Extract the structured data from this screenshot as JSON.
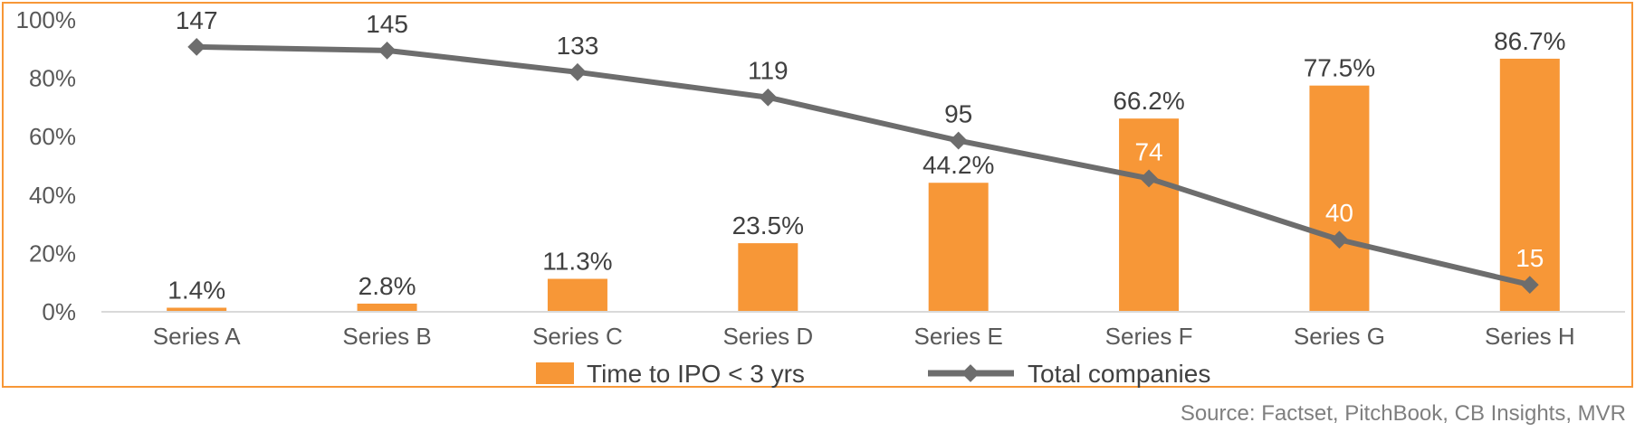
{
  "chart_data": {
    "type": "bar",
    "categories": [
      "Series A",
      "Series B",
      "Series C",
      "Series D",
      "Series E",
      "Series F",
      "Series G",
      "Series H"
    ],
    "series": [
      {
        "name": "Time to IPO < 3 yrs",
        "type": "bar",
        "axis": "left",
        "values": [
          1.4,
          2.8,
          11.3,
          23.5,
          44.2,
          66.2,
          77.5,
          86.7
        ],
        "labels": [
          "1.4%",
          "2.8%",
          "11.3%",
          "23.5%",
          "44.2%",
          "66.2%",
          "77.5%",
          "86.7%"
        ],
        "color": "#F79737"
      },
      {
        "name": "Total companies",
        "type": "line",
        "axis": "right",
        "values": [
          147,
          145,
          133,
          119,
          95,
          74,
          40,
          15
        ],
        "labels": [
          "147",
          "145",
          "133",
          "119",
          "95",
          "74",
          "40",
          "15"
        ],
        "color": "#6D6D6D"
      }
    ],
    "ylim": [
      0,
      100
    ],
    "yticks": [
      "0%",
      "20%",
      "40%",
      "60%",
      "80%",
      "100%"
    ],
    "y2lim": [
      0,
      162
    ],
    "legend": "bottom",
    "grid": false,
    "frame_color": "#F79737"
  },
  "source_note": "Source: Factset, PitchBook, CB Insights, MVR"
}
